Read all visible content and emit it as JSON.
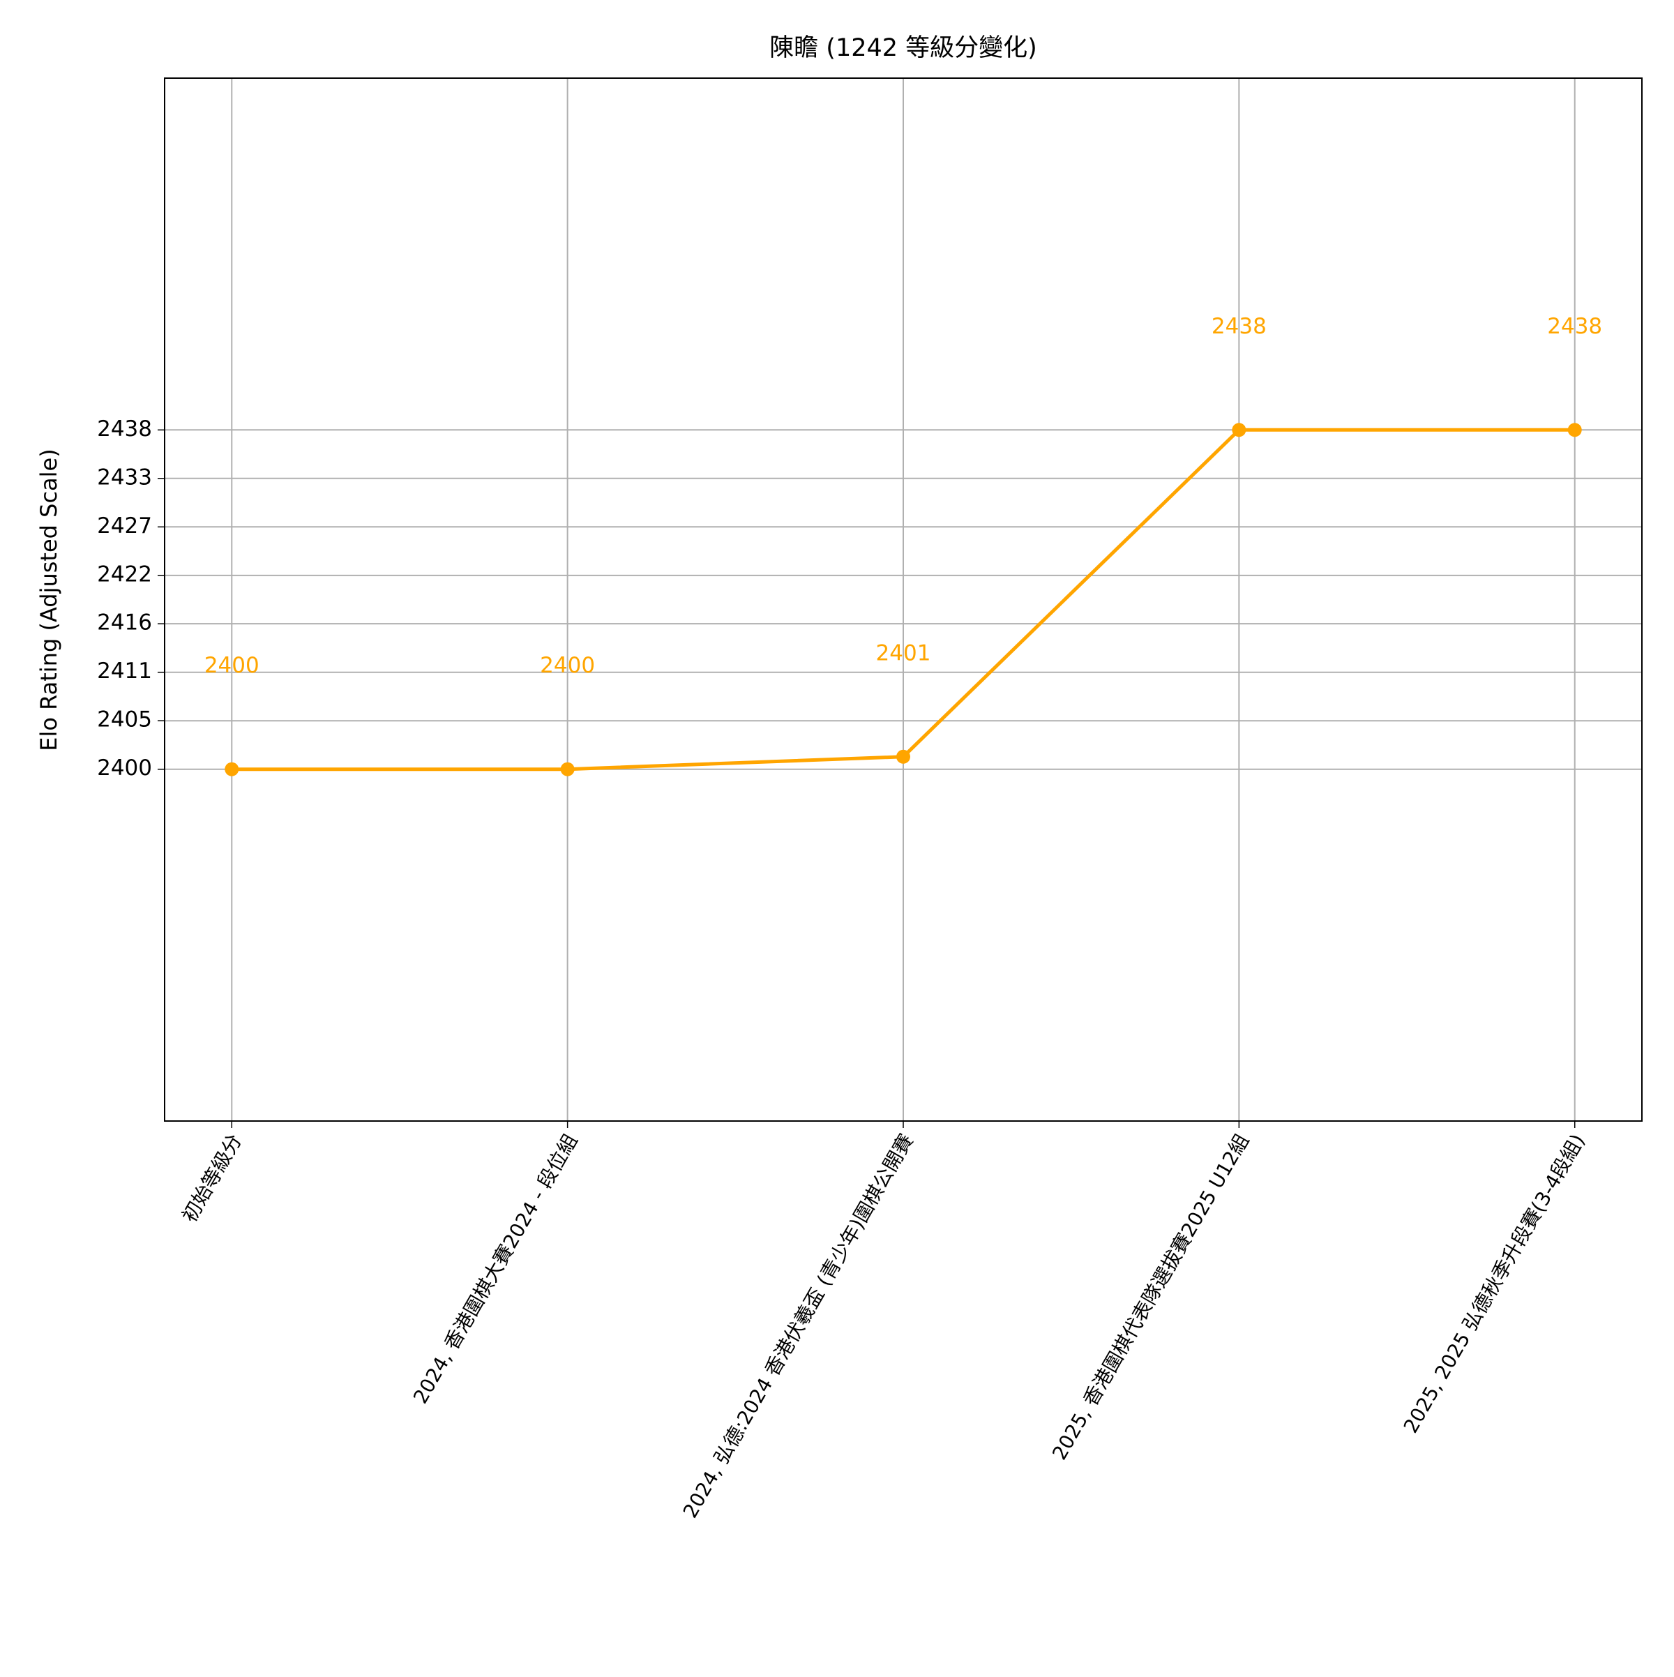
{
  "chart_data": {
    "type": "line",
    "title": "陳瞻 (1242 等級分變化)",
    "y_label": "Elo Rating (Adjusted Scale)",
    "categories": [
      "初始等級分",
      "2024, 香港圍棋大賽2024 - 段位組",
      "2024, 弘德:2024 香港伏羲盃 (青少年)圍棋公開賽",
      "2025, 香港圍棋代表隊選拔賽2025 U12組",
      "2025, 2025 弘德秋季升段賽(3-4段組)"
    ],
    "values": [
      2400,
      2400,
      2401.4,
      2438,
      2438
    ],
    "value_labels": [
      "2400",
      "2400",
      "2401",
      "2438",
      "2438"
    ],
    "color": "#ffa500",
    "ylim": [
      2360.6,
      2477.4
    ],
    "yticks": [
      {
        "value": 2400,
        "label": "2400"
      },
      {
        "value": 2405.43,
        "label": "2405"
      },
      {
        "value": 2410.86,
        "label": "2411"
      },
      {
        "value": 2416.29,
        "label": "2416"
      },
      {
        "value": 2421.71,
        "label": "2422"
      },
      {
        "value": 2427.14,
        "label": "2427"
      },
      {
        "value": 2432.57,
        "label": "2433"
      },
      {
        "value": 2438,
        "label": "2438"
      }
    ],
    "grid": true
  }
}
